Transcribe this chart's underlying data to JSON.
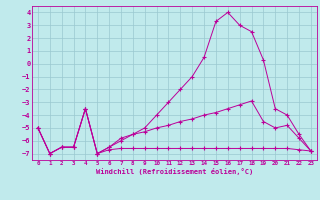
{
  "xlabel": "Windchill (Refroidissement éolien,°C)",
  "bg_color": "#c0eaec",
  "grid_color": "#9ac8d0",
  "line_color": "#bb0099",
  "xlim": [
    -0.5,
    23.5
  ],
  "ylim": [
    -7.5,
    4.5
  ],
  "xticks": [
    0,
    1,
    2,
    3,
    4,
    5,
    6,
    7,
    8,
    9,
    10,
    11,
    12,
    13,
    14,
    15,
    16,
    17,
    18,
    19,
    20,
    21,
    22,
    23
  ],
  "yticks": [
    -7,
    -6,
    -5,
    -4,
    -3,
    -2,
    -1,
    0,
    1,
    2,
    3,
    4
  ],
  "curve1_x": [
    0,
    1,
    2,
    3,
    4,
    5,
    6,
    7,
    8,
    9,
    10,
    11,
    12,
    13,
    14,
    15,
    16,
    17,
    18,
    19,
    20,
    21,
    22,
    23
  ],
  "curve1_y": [
    -5,
    -7,
    -6.5,
    -6.5,
    -3.5,
    -7,
    -6.5,
    -6.0,
    -5.5,
    -5.0,
    -4.0,
    -3.0,
    -2.0,
    -1.0,
    0.5,
    3.3,
    4.0,
    3.0,
    2.5,
    0.3,
    -3.5,
    -4.0,
    -5.5,
    -6.8
  ],
  "curve2_x": [
    0,
    1,
    2,
    3,
    4,
    5,
    6,
    7,
    8,
    9,
    10,
    11,
    12,
    13,
    14,
    15,
    16,
    17,
    18,
    19,
    20,
    21,
    22,
    23
  ],
  "curve2_y": [
    -5,
    -7,
    -6.5,
    -6.5,
    -3.5,
    -7,
    -6.7,
    -6.6,
    -6.6,
    -6.6,
    -6.6,
    -6.6,
    -6.6,
    -6.6,
    -6.6,
    -6.6,
    -6.6,
    -6.6,
    -6.6,
    -6.6,
    -6.6,
    -6.6,
    -6.7,
    -6.8
  ],
  "curve3_x": [
    0,
    1,
    2,
    3,
    4,
    5,
    6,
    7,
    8,
    9,
    10,
    11,
    12,
    13,
    14,
    15,
    16,
    17,
    18,
    19,
    20,
    21,
    22,
    23
  ],
  "curve3_y": [
    -5,
    -7,
    -6.5,
    -6.5,
    -3.5,
    -7,
    -6.5,
    -5.8,
    -5.5,
    -5.3,
    -5.0,
    -4.8,
    -4.5,
    -4.3,
    -4.0,
    -3.8,
    -3.5,
    -3.2,
    -2.9,
    -4.5,
    -5.0,
    -4.8,
    -5.8,
    -6.8
  ]
}
